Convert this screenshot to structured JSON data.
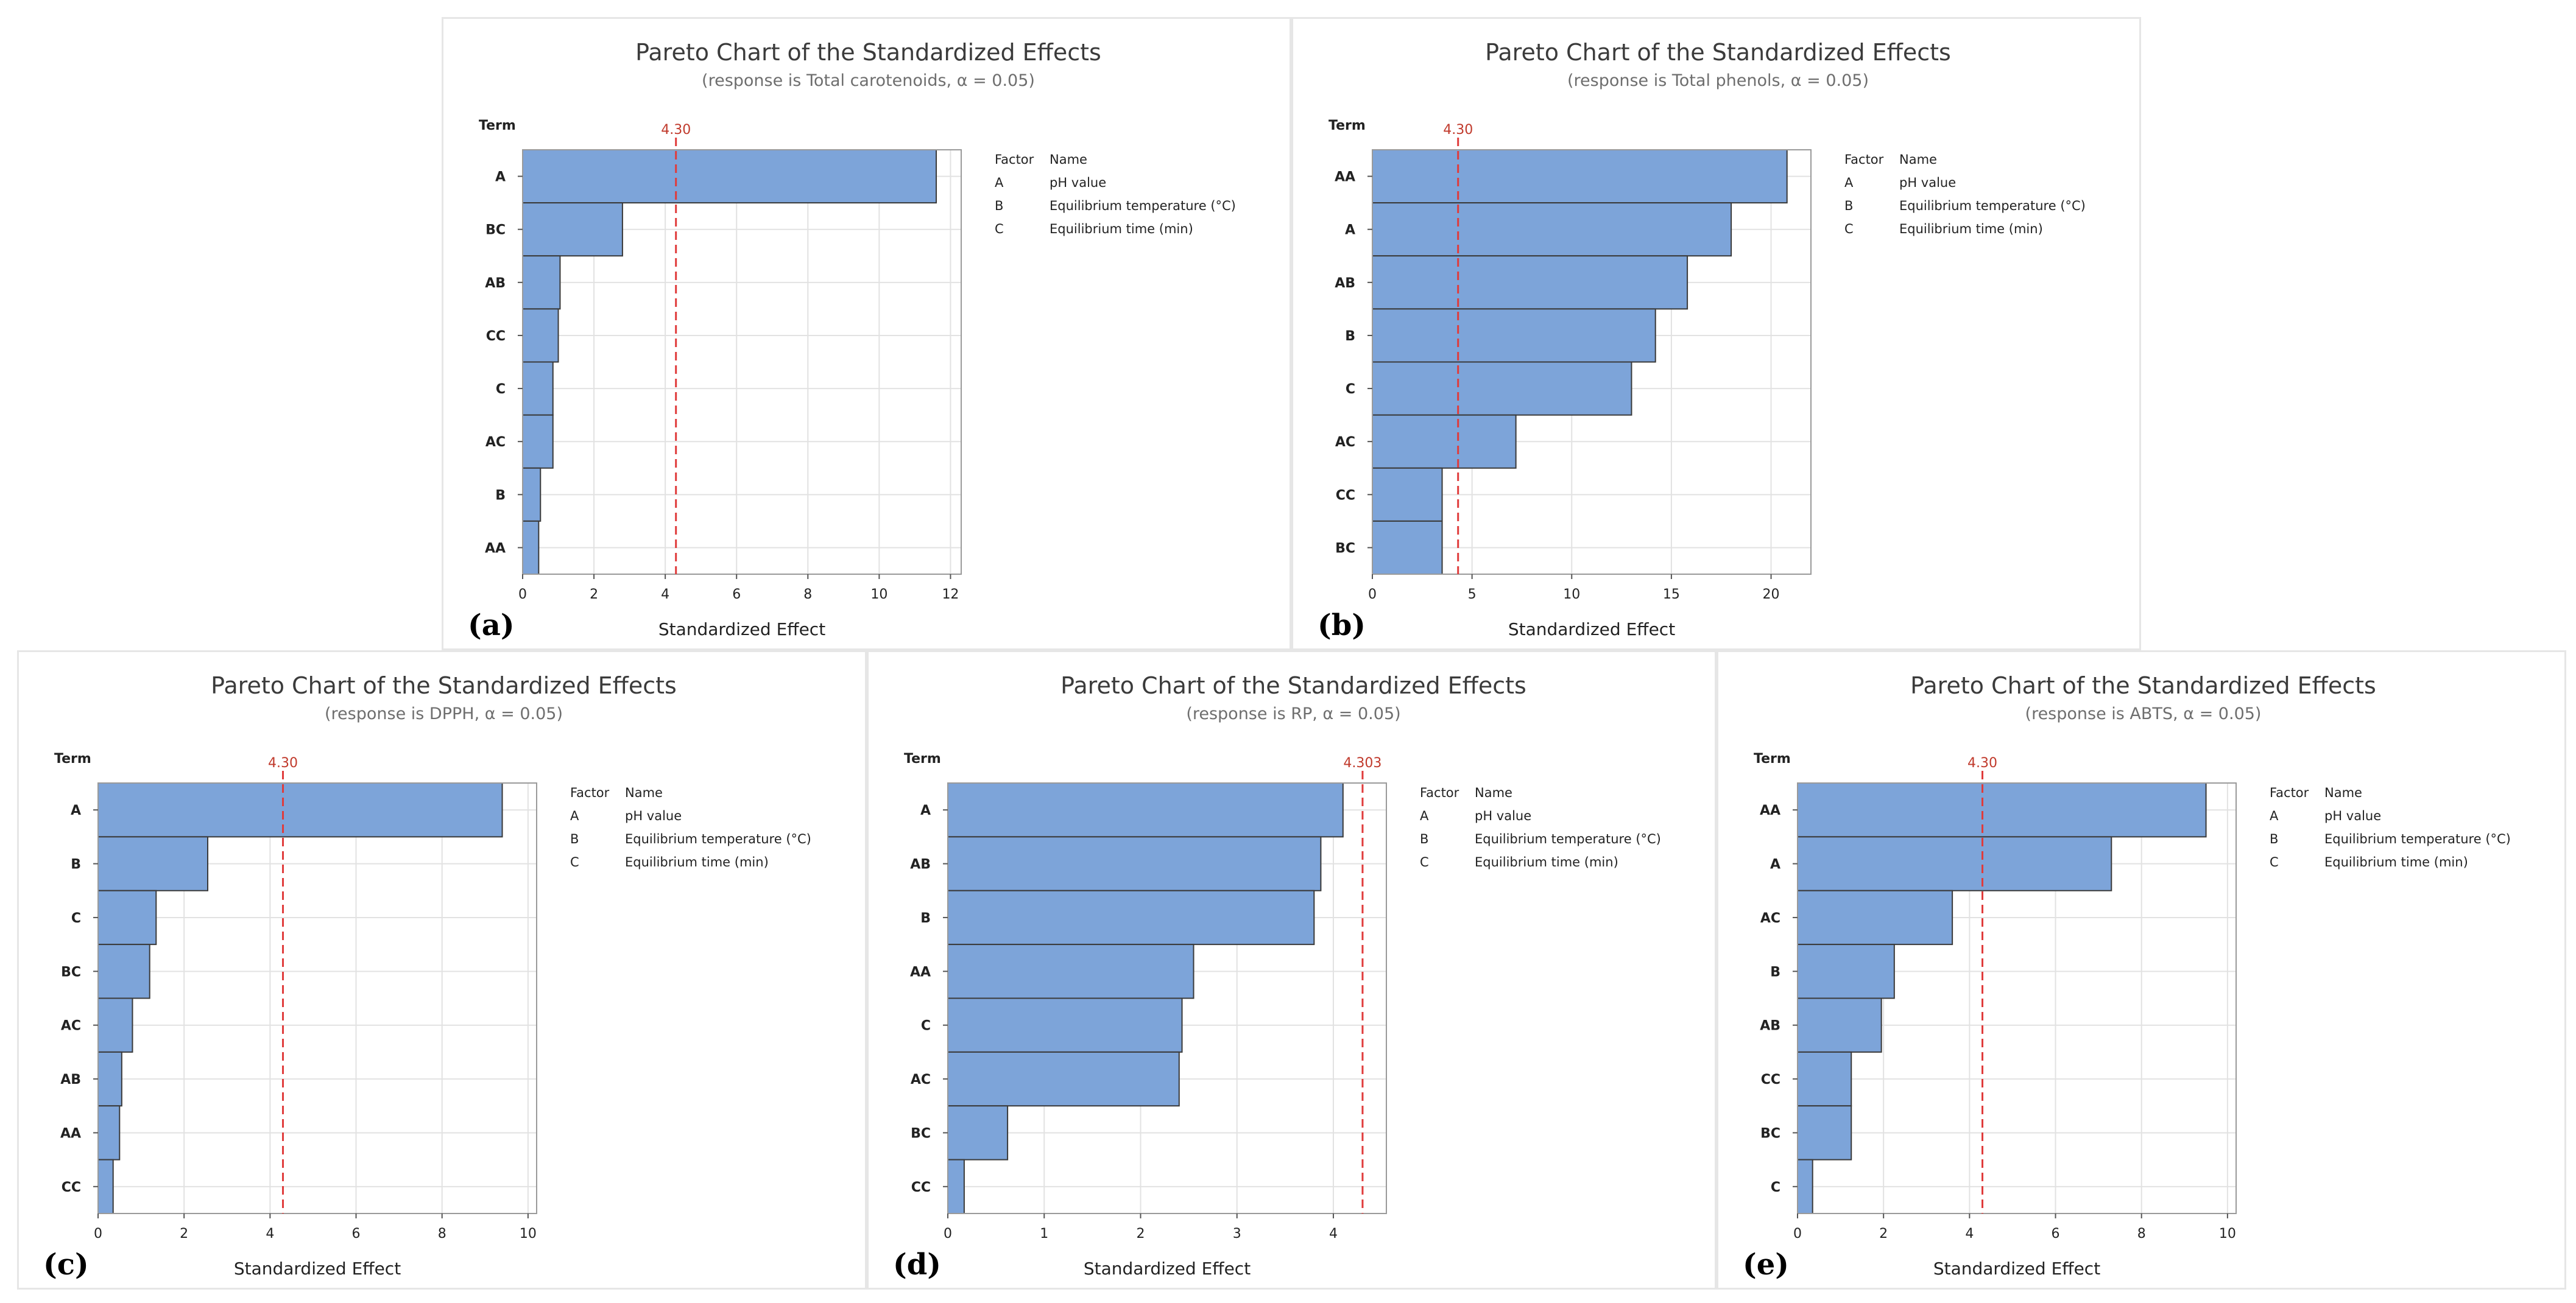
{
  "colors": {
    "bar": "#7da4d9",
    "bar_stroke": "#3a3a3a",
    "ref_line": "#e03b3b",
    "grid": "#e2e2e2"
  },
  "chart_data": [
    {
      "type": "bar",
      "panel_label": "(a)",
      "title": "Pareto Chart of the Standardized Effects",
      "subtitle": "(response is Total carotenoids, α = 0.05)",
      "ylabel": "Term",
      "xlabel": "Standardized Effect",
      "categories": [
        "A",
        "BC",
        "AB",
        "CC",
        "C",
        "AC",
        "B",
        "AA"
      ],
      "values": [
        11.6,
        2.8,
        1.05,
        1.0,
        0.85,
        0.85,
        0.5,
        0.45
      ],
      "xlim": [
        0,
        12.3
      ],
      "xticks": [
        0,
        2,
        4,
        6,
        8,
        10,
        12
      ],
      "critical_value": 4.3,
      "critical_label": "4.30",
      "legend_header": [
        "Factor",
        "Name"
      ],
      "legend": [
        [
          "A",
          "pH value"
        ],
        [
          "B",
          "Equilibrium temperature (°C)"
        ],
        [
          "C",
          "Equilibrium time (min)"
        ]
      ]
    },
    {
      "type": "bar",
      "panel_label": "(b)",
      "title": "Pareto Chart of the Standardized Effects",
      "subtitle": "(response is Total phenols, α = 0.05)",
      "ylabel": "Term",
      "xlabel": "Standardized Effect",
      "categories": [
        "AA",
        "A",
        "AB",
        "B",
        "C",
        "AC",
        "CC",
        "BC"
      ],
      "values": [
        20.8,
        18.0,
        15.8,
        14.2,
        13.0,
        7.2,
        3.5,
        3.5
      ],
      "xlim": [
        0,
        22.0
      ],
      "xticks": [
        0,
        5,
        10,
        15,
        20
      ],
      "critical_value": 4.3,
      "critical_label": "4.30",
      "legend_header": [
        "Factor",
        "Name"
      ],
      "legend": [
        [
          "A",
          "pH value"
        ],
        [
          "B",
          "Equilibrium temperature (°C)"
        ],
        [
          "C",
          "Equilibrium time (min)"
        ]
      ]
    },
    {
      "type": "bar",
      "panel_label": "(c)",
      "title": "Pareto Chart of the Standardized Effects",
      "subtitle": "(response is DPPH, α = 0.05)",
      "ylabel": "Term",
      "xlabel": "Standardized Effect",
      "categories": [
        "A",
        "B",
        "C",
        "BC",
        "AC",
        "AB",
        "AA",
        "CC"
      ],
      "values": [
        9.4,
        2.55,
        1.35,
        1.2,
        0.8,
        0.55,
        0.5,
        0.35
      ],
      "xlim": [
        0,
        10.2
      ],
      "xticks": [
        0,
        2,
        4,
        6,
        8,
        10
      ],
      "critical_value": 4.3,
      "critical_label": "4.30",
      "legend_header": [
        "Factor",
        "Name"
      ],
      "legend": [
        [
          "A",
          "pH value"
        ],
        [
          "B",
          "Equilibrium temperature (°C)"
        ],
        [
          "C",
          "Equilibrium time (min)"
        ]
      ]
    },
    {
      "type": "bar",
      "panel_label": "(d)",
      "title": "Pareto Chart of the Standardized Effects",
      "subtitle": "(response is RP, α = 0.05)",
      "ylabel": "Term",
      "xlabel": "Standardized Effect",
      "categories": [
        "A",
        "AB",
        "B",
        "AA",
        "C",
        "AC",
        "BC",
        "CC"
      ],
      "values": [
        4.1,
        3.87,
        3.8,
        2.55,
        2.43,
        2.4,
        0.62,
        0.17
      ],
      "xlim": [
        0,
        4.55
      ],
      "xticks": [
        0,
        1,
        2,
        3,
        4
      ],
      "critical_value": 4.303,
      "critical_label": "4.303",
      "legend_header": [
        "Factor",
        "Name"
      ],
      "legend": [
        [
          "A",
          "pH value"
        ],
        [
          "B",
          "Equilibrium temperature (°C)"
        ],
        [
          "C",
          "Equilibrium time (min)"
        ]
      ]
    },
    {
      "type": "bar",
      "panel_label": "(e)",
      "title": "Pareto Chart of the Standardized Effects",
      "subtitle": "(response is ABTS, α = 0.05)",
      "ylabel": "Term",
      "xlabel": "Standardized Effect",
      "categories": [
        "AA",
        "A",
        "AC",
        "B",
        "AB",
        "CC",
        "BC",
        "C"
      ],
      "values": [
        9.5,
        7.3,
        3.6,
        2.25,
        1.95,
        1.25,
        1.25,
        0.35
      ],
      "xlim": [
        0,
        10.2
      ],
      "xticks": [
        0,
        2,
        4,
        6,
        8,
        10
      ],
      "critical_value": 4.3,
      "critical_label": "4.30",
      "legend_header": [
        "Factor",
        "Name"
      ],
      "legend": [
        [
          "A",
          "pH value"
        ],
        [
          "B",
          "Equilibrium temperature (°C)"
        ],
        [
          "C",
          "Equilibrium time (min)"
        ]
      ]
    }
  ]
}
